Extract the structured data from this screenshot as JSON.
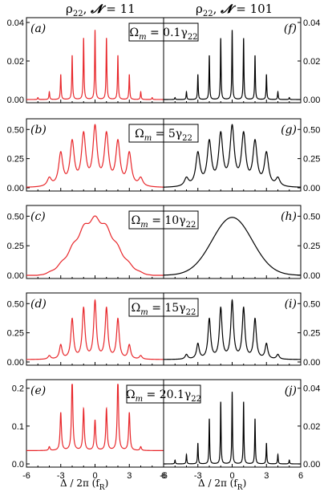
{
  "figure": {
    "left_title": {
      "var": "ρ",
      "sub": "22",
      "sep": ",  ",
      "n_sym": "𝓝",
      "n_val": " = 11"
    },
    "right_title": {
      "var": "ρ",
      "sub": "22",
      "sep": ",  ",
      "n_sym": "𝓝",
      "n_val": " = 101"
    },
    "x_axis_label": {
      "main": "Δ / 2π (f",
      "sub": "R",
      "close": ")"
    },
    "colors": {
      "left": "#e8262a",
      "right": "#000000"
    }
  },
  "chart_data": [
    {
      "type": "line",
      "column": "left",
      "row": 0,
      "panel_label": "(a)",
      "omega_label": {
        "pre": "Ω",
        "sub": "m",
        "eq": " = 0.1γ",
        "gsub": "22"
      },
      "xlim": [
        -6,
        6
      ],
      "ylim": [
        0,
        0.04
      ],
      "yticks": [
        "0.00",
        "0.02",
        "0.04"
      ],
      "ytick_values": [
        0,
        0.02,
        0.04
      ],
      "xticks": [],
      "color": "#e8262a",
      "peaks": {
        "x": [
          -5,
          -4,
          -3,
          -2,
          -1,
          0,
          1,
          2,
          3,
          4,
          5
        ],
        "y": [
          0.001,
          0.004,
          0.013,
          0.023,
          0.032,
          0.036,
          0.032,
          0.023,
          0.013,
          0.004,
          0.001
        ],
        "width": 0.04,
        "background": 0,
        "wave_amp": 0
      }
    },
    {
      "type": "line",
      "column": "left",
      "row": 1,
      "panel_label": "(b)",
      "omega_label": {
        "pre": "Ω",
        "sub": "m",
        "eq": " = 5γ",
        "gsub": "22"
      },
      "xlim": [
        -6,
        6
      ],
      "ylim": [
        0,
        0.55
      ],
      "yticks": [
        "0.00",
        "0.25",
        "0.50"
      ],
      "ytick_values": [
        0,
        0.25,
        0.5
      ],
      "xticks": [],
      "color": "#e8262a",
      "peaks": {
        "x": [
          -4,
          -3,
          -2,
          -1,
          0,
          1,
          2,
          3,
          4
        ],
        "y": [
          0.07,
          0.28,
          0.37,
          0.43,
          0.49,
          0.43,
          0.37,
          0.28,
          0.07
        ],
        "width": 0.22,
        "background": 0,
        "wave_amp": 0
      }
    },
    {
      "type": "line",
      "column": "left",
      "row": 2,
      "panel_label": "(c)",
      "omega_label": {
        "pre": "Ω",
        "sub": "m",
        "eq": " = 10γ",
        "gsub": "22"
      },
      "xlim": [
        -6,
        6
      ],
      "ylim": [
        0,
        0.55
      ],
      "yticks": [
        "0.00",
        "0.25",
        "0.50"
      ],
      "ytick_values": [
        0,
        0.25,
        0.5
      ],
      "xticks": [],
      "color": "#e8262a",
      "peaks": {
        "x": [],
        "y": [],
        "width": 0.3,
        "background": 0,
        "wave_amp": 0.02,
        "envelope_peak": 0.49,
        "envelope_sigma": 1.75
      }
    },
    {
      "type": "line",
      "column": "left",
      "row": 3,
      "panel_label": "(d)",
      "omega_label": {
        "pre": "Ω",
        "sub": "m",
        "eq": " = 15γ",
        "gsub": "22"
      },
      "xlim": [
        -6,
        6
      ],
      "ylim": [
        0,
        0.55
      ],
      "yticks": [
        "0.00",
        "0.25",
        "0.50"
      ],
      "ytick_values": [
        0,
        0.25,
        0.5
      ],
      "xticks": [],
      "color": "#e8262a",
      "peaks": {
        "x": [
          -4,
          -3,
          -2,
          -1,
          0,
          1,
          2,
          3,
          4
        ],
        "y": [
          0.03,
          0.12,
          0.34,
          0.43,
          0.49,
          0.43,
          0.34,
          0.12,
          0.03
        ],
        "width": 0.14,
        "background": 0.02,
        "wave_amp": 0
      }
    },
    {
      "type": "line",
      "column": "left",
      "row": 4,
      "panel_label": "(e)",
      "omega_label": {
        "pre": "Ω",
        "sub": "m",
        "eq": " = 20.1γ",
        "gsub": "22"
      },
      "xlim": [
        -6,
        6
      ],
      "ylim": [
        0,
        0.21
      ],
      "yticks": [
        "0.0",
        "0.1",
        "0.2"
      ],
      "ytick_values": [
        0,
        0.1,
        0.2
      ],
      "xticks": [
        "-6",
        "-3",
        "0",
        "3",
        "6"
      ],
      "xtick_values": [
        -6,
        -3,
        0,
        3,
        6
      ],
      "color": "#e8262a",
      "peaks": {
        "x": [
          -4,
          -3,
          -2,
          -1,
          0,
          1,
          2,
          3,
          4
        ],
        "y": [
          0.01,
          0.1,
          0.19,
          0.11,
          0.08,
          0.11,
          0.19,
          0.1,
          0.01
        ],
        "width": 0.07,
        "background": 0.035,
        "wave_amp": 0
      }
    },
    {
      "type": "line",
      "column": "right",
      "row": 0,
      "panel_label": "(f)",
      "xlim": [
        -6,
        6
      ],
      "ylim": [
        0,
        0.04
      ],
      "yticks": [
        "0.00",
        "0.02",
        "0.04"
      ],
      "ytick_values": [
        0,
        0.02,
        0.04
      ],
      "xticks": [],
      "color": "#000000",
      "peaks": {
        "x": [
          -5,
          -4,
          -3,
          -2,
          -1,
          0,
          1,
          2,
          3,
          4,
          5
        ],
        "y": [
          0.001,
          0.004,
          0.013,
          0.023,
          0.032,
          0.036,
          0.032,
          0.023,
          0.013,
          0.004,
          0.001
        ],
        "width": 0.035,
        "background": 0,
        "wave_amp": 0
      }
    },
    {
      "type": "line",
      "column": "right",
      "row": 1,
      "panel_label": "(g)",
      "xlim": [
        -6,
        6
      ],
      "ylim": [
        0,
        0.55
      ],
      "yticks": [
        "0.00",
        "0.25",
        "0.50"
      ],
      "ytick_values": [
        0,
        0.25,
        0.5
      ],
      "xticks": [],
      "color": "#000000",
      "peaks": {
        "x": [
          -4,
          -3,
          -2,
          -1,
          0,
          1,
          2,
          3,
          4
        ],
        "y": [
          0.07,
          0.28,
          0.37,
          0.43,
          0.49,
          0.43,
          0.37,
          0.28,
          0.07
        ],
        "width": 0.22,
        "background": 0,
        "wave_amp": 0
      }
    },
    {
      "type": "line",
      "column": "right",
      "row": 2,
      "panel_label": "(h)",
      "xlim": [
        -6,
        6
      ],
      "ylim": [
        0,
        0.55
      ],
      "yticks": [
        "0.00",
        "0.25",
        "0.50"
      ],
      "ytick_values": [
        0,
        0.25,
        0.5
      ],
      "xticks": [],
      "color": "#000000",
      "peaks": {
        "x": [],
        "y": [],
        "width": 0.3,
        "background": 0,
        "wave_amp": 0,
        "envelope_peak": 0.49,
        "envelope_sigma": 1.75
      }
    },
    {
      "type": "line",
      "column": "right",
      "row": 3,
      "panel_label": "(i)",
      "xlim": [
        -6,
        6
      ],
      "ylim": [
        0,
        0.55
      ],
      "yticks": [
        "0.00",
        "0.25",
        "0.50"
      ],
      "ytick_values": [
        0,
        0.25,
        0.5
      ],
      "xticks": [],
      "color": "#000000",
      "peaks": {
        "x": [
          -4,
          -3,
          -2,
          -1,
          0,
          1,
          2,
          3,
          4
        ],
        "y": [
          0.04,
          0.13,
          0.34,
          0.43,
          0.49,
          0.43,
          0.34,
          0.13,
          0.04
        ],
        "width": 0.14,
        "background": 0.02,
        "wave_amp": 0
      }
    },
    {
      "type": "line",
      "column": "right",
      "row": 4,
      "panel_label": "(j)",
      "xlim": [
        -6,
        6
      ],
      "ylim": [
        0,
        0.042
      ],
      "yticks": [
        "0.00",
        "0.02",
        "0.04"
      ],
      "ytick_values": [
        0,
        0.02,
        0.04
      ],
      "xticks": [
        "-6",
        "-3",
        "0",
        "3",
        "6"
      ],
      "xtick_values": [
        -6,
        -3,
        0,
        3,
        6
      ],
      "color": "#000000",
      "peaks": {
        "x": [
          -5,
          -4,
          -3,
          -2,
          -1,
          0,
          1,
          2,
          3,
          4,
          5
        ],
        "y": [
          0.002,
          0.005,
          0.011,
          0.024,
          0.033,
          0.038,
          0.033,
          0.024,
          0.011,
          0.005,
          0.002
        ],
        "width": 0.035,
        "background": 0,
        "wave_amp": 0
      }
    }
  ]
}
